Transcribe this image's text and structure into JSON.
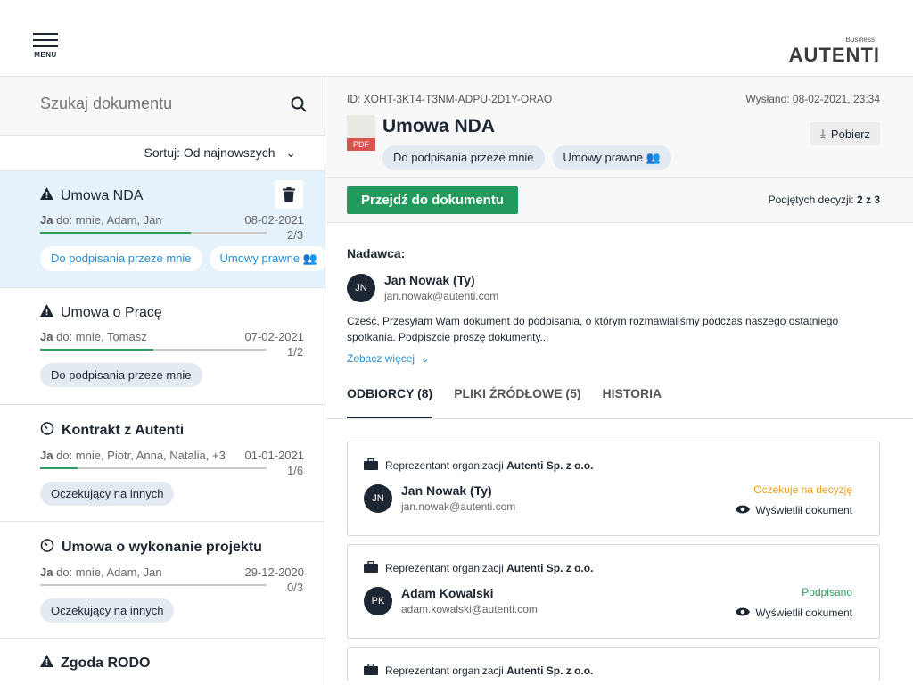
{
  "header": {
    "menu_label": "MENU",
    "logo_sub": "Business",
    "logo_name": "AUTENTI"
  },
  "search": {
    "placeholder": "Szukaj dokumentu"
  },
  "sort": {
    "label": "Sortuj: Od najnowszych"
  },
  "documents": [
    {
      "title": "Umowa NDA",
      "icon": "warning-icon",
      "bold": false,
      "from": "Ja",
      "to": "do: mnie, Adam, Jan",
      "date": "08-02-2021",
      "progress": "2/3",
      "chips": [
        "Do podpisania przeze mnie",
        "Umowy prawne"
      ]
    },
    {
      "title": "Umowa o Pracę",
      "icon": "warning-icon",
      "bold": false,
      "from": "Ja",
      "to": "do: mnie, Tomasz",
      "date": "07-02-2021",
      "progress": "1/2",
      "chips": [
        "Do podpisania przeze mnie"
      ]
    },
    {
      "title": "Kontrakt z Autenti",
      "icon": "timer-icon",
      "bold": true,
      "from": "Ja",
      "to": "do: mnie, Piotr, Anna, Natalia, +3",
      "date": "01-01-2021",
      "progress": "1/6",
      "chips": [
        "Oczekujący na innych"
      ]
    },
    {
      "title": "Umowa o wykonanie projektu",
      "icon": "timer-icon",
      "bold": true,
      "from": "Ja",
      "to": "do: mnie, Adam, Jan",
      "date": "29-12-2020",
      "progress": "0/3",
      "chips": [
        "Oczekujący na innych"
      ]
    },
    {
      "title": "Zgoda RODO",
      "icon": "warning-icon",
      "bold": true
    }
  ],
  "detail": {
    "id": "ID: XOHT-3KT4-T3NM-ADPU-2D1Y-ORAO",
    "sent": "Wysłano: 08-02-2021, 23:34",
    "file_type": "PDF",
    "title": "Umowa NDA",
    "chips": [
      "Do podpisania przeze mnie",
      "Umowy prawne"
    ],
    "download": "Pobierz",
    "open": "Przejdź do dokumentu",
    "decisions_label": "Podjętych decyzji:",
    "decisions_value": "2 z 3",
    "sender_label": "Nadawca:",
    "sender": {
      "initials": "JN",
      "name": "Jan Nowak (Ty)",
      "email": "jan.nowak@autenti.com"
    },
    "message": "Cześć, Przesyłam Wam dokument do podpisania, o którym rozmawialiśmy podczas naszego ostatniego spotkania. Podpiszcie proszę dokumenty...",
    "more": "Zobacz więcej",
    "tabs": [
      "ODBIORCY (8)",
      "PLIKI ŹRÓDŁOWE (5)",
      "HISTORIA"
    ],
    "recipients": [
      {
        "org_prefix": "Reprezentant organizacji",
        "org": "Autenti Sp. z o.o.",
        "initials": "JN",
        "name": "Jan Nowak (Ty)",
        "email": "jan.nowak@autenti.com",
        "status": "Oczekuje na decyzję",
        "status_color": "#f0a020",
        "view": "Wyświetlił dokument"
      },
      {
        "org_prefix": "Reprezentant organizacji",
        "org": "Autenti Sp. z o.o.",
        "initials": "PK",
        "name": "Adam Kowalski",
        "email": "adam.kowalski@autenti.com",
        "status": "Podpisano",
        "status_color": "#2e9b5f",
        "view": "Wyświetlił dokument"
      },
      {
        "org_prefix": "Reprezentant organizacji",
        "org": "Autenti Sp. z o.o."
      }
    ]
  }
}
